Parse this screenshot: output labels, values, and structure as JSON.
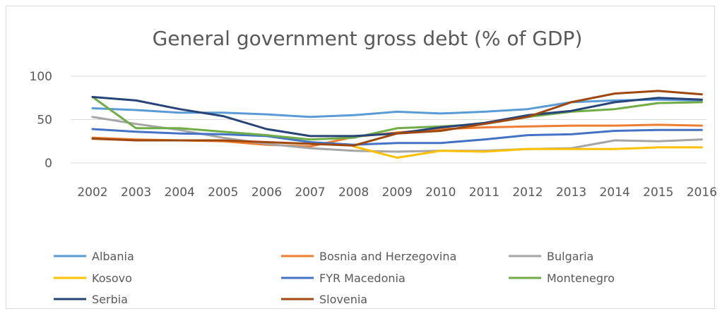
{
  "chart_data": {
    "type": "line",
    "title": "General government gross debt (% of GDP)",
    "xlabel": "",
    "ylabel": "",
    "ylim": [
      0,
      100
    ],
    "yticks": [
      0,
      50,
      100
    ],
    "grid": "horizontal",
    "legend_position": "bottom",
    "x": [
      "2002",
      "2003",
      "2004",
      "2005",
      "2006",
      "2007",
      "2008",
      "2009",
      "2010",
      "2011",
      "2012",
      "2013",
      "2014",
      "2015",
      "2016"
    ],
    "series": [
      {
        "name": "Albania",
        "color": "#5b9bd5",
        "values": [
          63,
          61,
          58,
          58,
          56,
          53,
          55,
          59,
          57,
          59,
          62,
          70,
          72,
          73,
          72
        ]
      },
      {
        "name": "Bosnia and Herzegovina",
        "color": "#ed7d31",
        "values": [
          29,
          27,
          26,
          25,
          21,
          19,
          30,
          35,
          39,
          41,
          42,
          43,
          43,
          44,
          43
        ]
      },
      {
        "name": "Bulgaria",
        "color": "#a5a5a5",
        "values": [
          53,
          45,
          38,
          29,
          22,
          17,
          14,
          13,
          14,
          14,
          16,
          17,
          26,
          25,
          27
        ]
      },
      {
        "name": "Kosovo",
        "color": "#ffc000",
        "values": [
          null,
          null,
          null,
          null,
          null,
          null,
          19,
          6,
          14,
          13,
          16,
          16,
          16,
          18,
          18
        ]
      },
      {
        "name": "FYR Macedonia",
        "color": "#4472c4",
        "values": [
          39,
          36,
          34,
          33,
          31,
          24,
          21,
          23,
          23,
          27,
          32,
          33,
          37,
          38,
          38
        ]
      },
      {
        "name": "Montenegro",
        "color": "#70ad47",
        "values": [
          76,
          40,
          40,
          36,
          32,
          27,
          29,
          40,
          42,
          45,
          53,
          59,
          62,
          69,
          70
        ]
      },
      {
        "name": "Serbia",
        "color": "#264478",
        "values": [
          76,
          72,
          62,
          54,
          39,
          31,
          31,
          34,
          41,
          46,
          55,
          60,
          70,
          75,
          73
        ]
      },
      {
        "name": "Slovenia",
        "color": "#9e480e",
        "values": [
          28,
          26,
          26,
          26,
          24,
          22,
          20,
          34,
          37,
          45,
          53,
          70,
          80,
          83,
          79
        ]
      }
    ]
  }
}
